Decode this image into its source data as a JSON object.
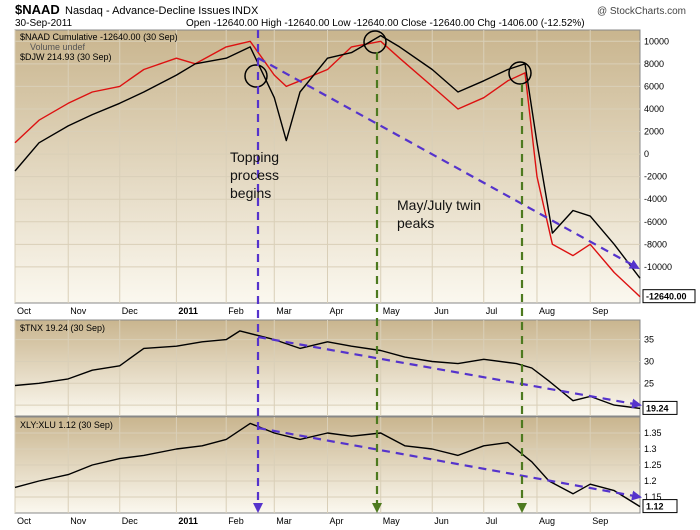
{
  "header": {
    "symbol": "$NAAD",
    "name": "Nasdaq - Advance-Decline Issues",
    "exchange": "INDX",
    "date": "30-Sep-2011",
    "quote": "Open -12640.00  High -12640.00  Low -12640.00  Close -12640.00  Chg -1406.00 (-12.52%)",
    "watermark": "@ StockCharts.com"
  },
  "colors": {
    "panel_bg_top": "#c9b58e",
    "panel_bg_bottom": "#fbf8ef",
    "naad_line": "#dd1111",
    "price_line": "#000000",
    "trend_arrow": "#5533cc",
    "vertical_arrow_topping": "#5533cc",
    "vertical_arrow_peaks": "#4d7a1f",
    "grid": "#d9cfb8"
  },
  "annotations": {
    "topping": [
      "Topping",
      "process",
      "begins"
    ],
    "peaks": [
      "May/July twin",
      "peaks"
    ]
  },
  "chart_data": [
    {
      "type": "line",
      "legend": [
        "$NAAD Cumulative -12640.00 (30 Sep)",
        "Volume undef",
        "$DJW 214.93 (30 Sep)"
      ],
      "x": [
        "2010-10-01",
        "2010-10-15",
        "2010-11-01",
        "2010-11-15",
        "2010-12-01",
        "2010-12-15",
        "2011-01-03",
        "2011-01-14",
        "2011-02-01",
        "2011-02-15",
        "2011-03-01",
        "2011-03-08",
        "2011-03-16",
        "2011-04-01",
        "2011-04-15",
        "2011-05-02",
        "2011-05-13",
        "2011-06-01",
        "2011-06-16",
        "2011-07-01",
        "2011-07-15",
        "2011-07-25",
        "2011-08-01",
        "2011-08-10",
        "2011-08-22",
        "2011-09-01",
        "2011-09-15",
        "2011-09-30"
      ],
      "yticks": [
        10000,
        8000,
        6000,
        4000,
        2000,
        0,
        -2000,
        -4000,
        -6000,
        -8000,
        -10000
      ],
      "ylim": [
        -13200,
        11000
      ],
      "last_value_label": "-12640.00",
      "series": [
        {
          "name": "$NAAD Cumulative",
          "color": "red",
          "values": [
            1000,
            3000,
            4500,
            5500,
            6000,
            7500,
            8500,
            8000,
            9500,
            10000,
            7000,
            6000,
            6500,
            7500,
            9500,
            10000,
            8500,
            6000,
            4000,
            5000,
            6500,
            7200,
            -2000,
            -8000,
            -9000,
            -8000,
            -10500,
            -12640
          ]
        },
        {
          "name": "$DJW",
          "color": "black",
          "values": [
            -1500,
            1000,
            2500,
            3500,
            4500,
            5500,
            7000,
            8000,
            8500,
            9500,
            5000,
            1200,
            5500,
            8500,
            9000,
            10500,
            9500,
            7500,
            5500,
            6500,
            7500,
            8000,
            1000,
            -7000,
            -5000,
            -5500,
            -8000,
            -11000
          ]
        }
      ],
      "xtick_labels": [
        "Oct",
        "Nov",
        "Dec",
        "2011",
        "Feb",
        "Mar",
        "Apr",
        "May",
        "Jun",
        "Jul",
        "Aug",
        "Sep"
      ]
    },
    {
      "type": "line",
      "legend": [
        "$TNX 19.24 (30 Sep)"
      ],
      "x": [
        "2010-10-01",
        "2010-10-15",
        "2010-11-01",
        "2010-11-15",
        "2010-12-01",
        "2010-12-15",
        "2011-01-03",
        "2011-01-18",
        "2011-02-01",
        "2011-02-09",
        "2011-03-01",
        "2011-03-16",
        "2011-04-01",
        "2011-04-15",
        "2011-05-02",
        "2011-05-16",
        "2011-06-01",
        "2011-06-16",
        "2011-07-01",
        "2011-07-20",
        "2011-07-29",
        "2011-08-08",
        "2011-08-22",
        "2011-09-01",
        "2011-09-15",
        "2011-09-30"
      ],
      "yticks": [
        35,
        30,
        25,
        20
      ],
      "ylim": [
        17.5,
        39.5
      ],
      "last_value_label": "19.24",
      "series": [
        {
          "name": "$TNX",
          "color": "black",
          "values": [
            24.5,
            25,
            26,
            28,
            29,
            33,
            33.5,
            34.5,
            35,
            37,
            35,
            33,
            34.5,
            33.5,
            32.5,
            31,
            30,
            29.5,
            30.5,
            29.5,
            28.5,
            25.5,
            21,
            22,
            20,
            19.24
          ]
        }
      ],
      "xtick_labels": [
        "Oct",
        "Nov",
        "Dec",
        "2011",
        "Feb",
        "Mar",
        "Apr",
        "May",
        "Jun",
        "Jul",
        "Aug",
        "Sep"
      ]
    },
    {
      "type": "line",
      "legend": [
        "XLY:XLU 1.12 (30 Sep)"
      ],
      "x": [
        "2010-10-01",
        "2010-10-15",
        "2010-11-01",
        "2010-11-15",
        "2010-12-01",
        "2010-12-15",
        "2011-01-03",
        "2011-01-18",
        "2011-02-01",
        "2011-02-15",
        "2011-03-01",
        "2011-03-16",
        "2011-04-01",
        "2011-04-15",
        "2011-05-02",
        "2011-05-16",
        "2011-06-01",
        "2011-06-16",
        "2011-07-01",
        "2011-07-15",
        "2011-07-29",
        "2011-08-08",
        "2011-08-22",
        "2011-09-01",
        "2011-09-15",
        "2011-09-30"
      ],
      "yticks": [
        1.35,
        1.3,
        1.25,
        1.2,
        1.15
      ],
      "ylim": [
        1.1,
        1.4
      ],
      "last_value_label": "1.12",
      "series": [
        {
          "name": "XLY:XLU",
          "color": "black",
          "values": [
            1.18,
            1.2,
            1.22,
            1.25,
            1.27,
            1.28,
            1.3,
            1.31,
            1.33,
            1.38,
            1.35,
            1.33,
            1.35,
            1.34,
            1.35,
            1.31,
            1.3,
            1.28,
            1.31,
            1.32,
            1.26,
            1.2,
            1.16,
            1.19,
            1.17,
            1.12
          ]
        }
      ],
      "xtick_labels": [
        "Oct",
        "Nov",
        "Dec",
        "2011",
        "Feb",
        "Mar",
        "Apr",
        "May",
        "Jun",
        "Jul",
        "Aug",
        "Sep"
      ]
    }
  ]
}
